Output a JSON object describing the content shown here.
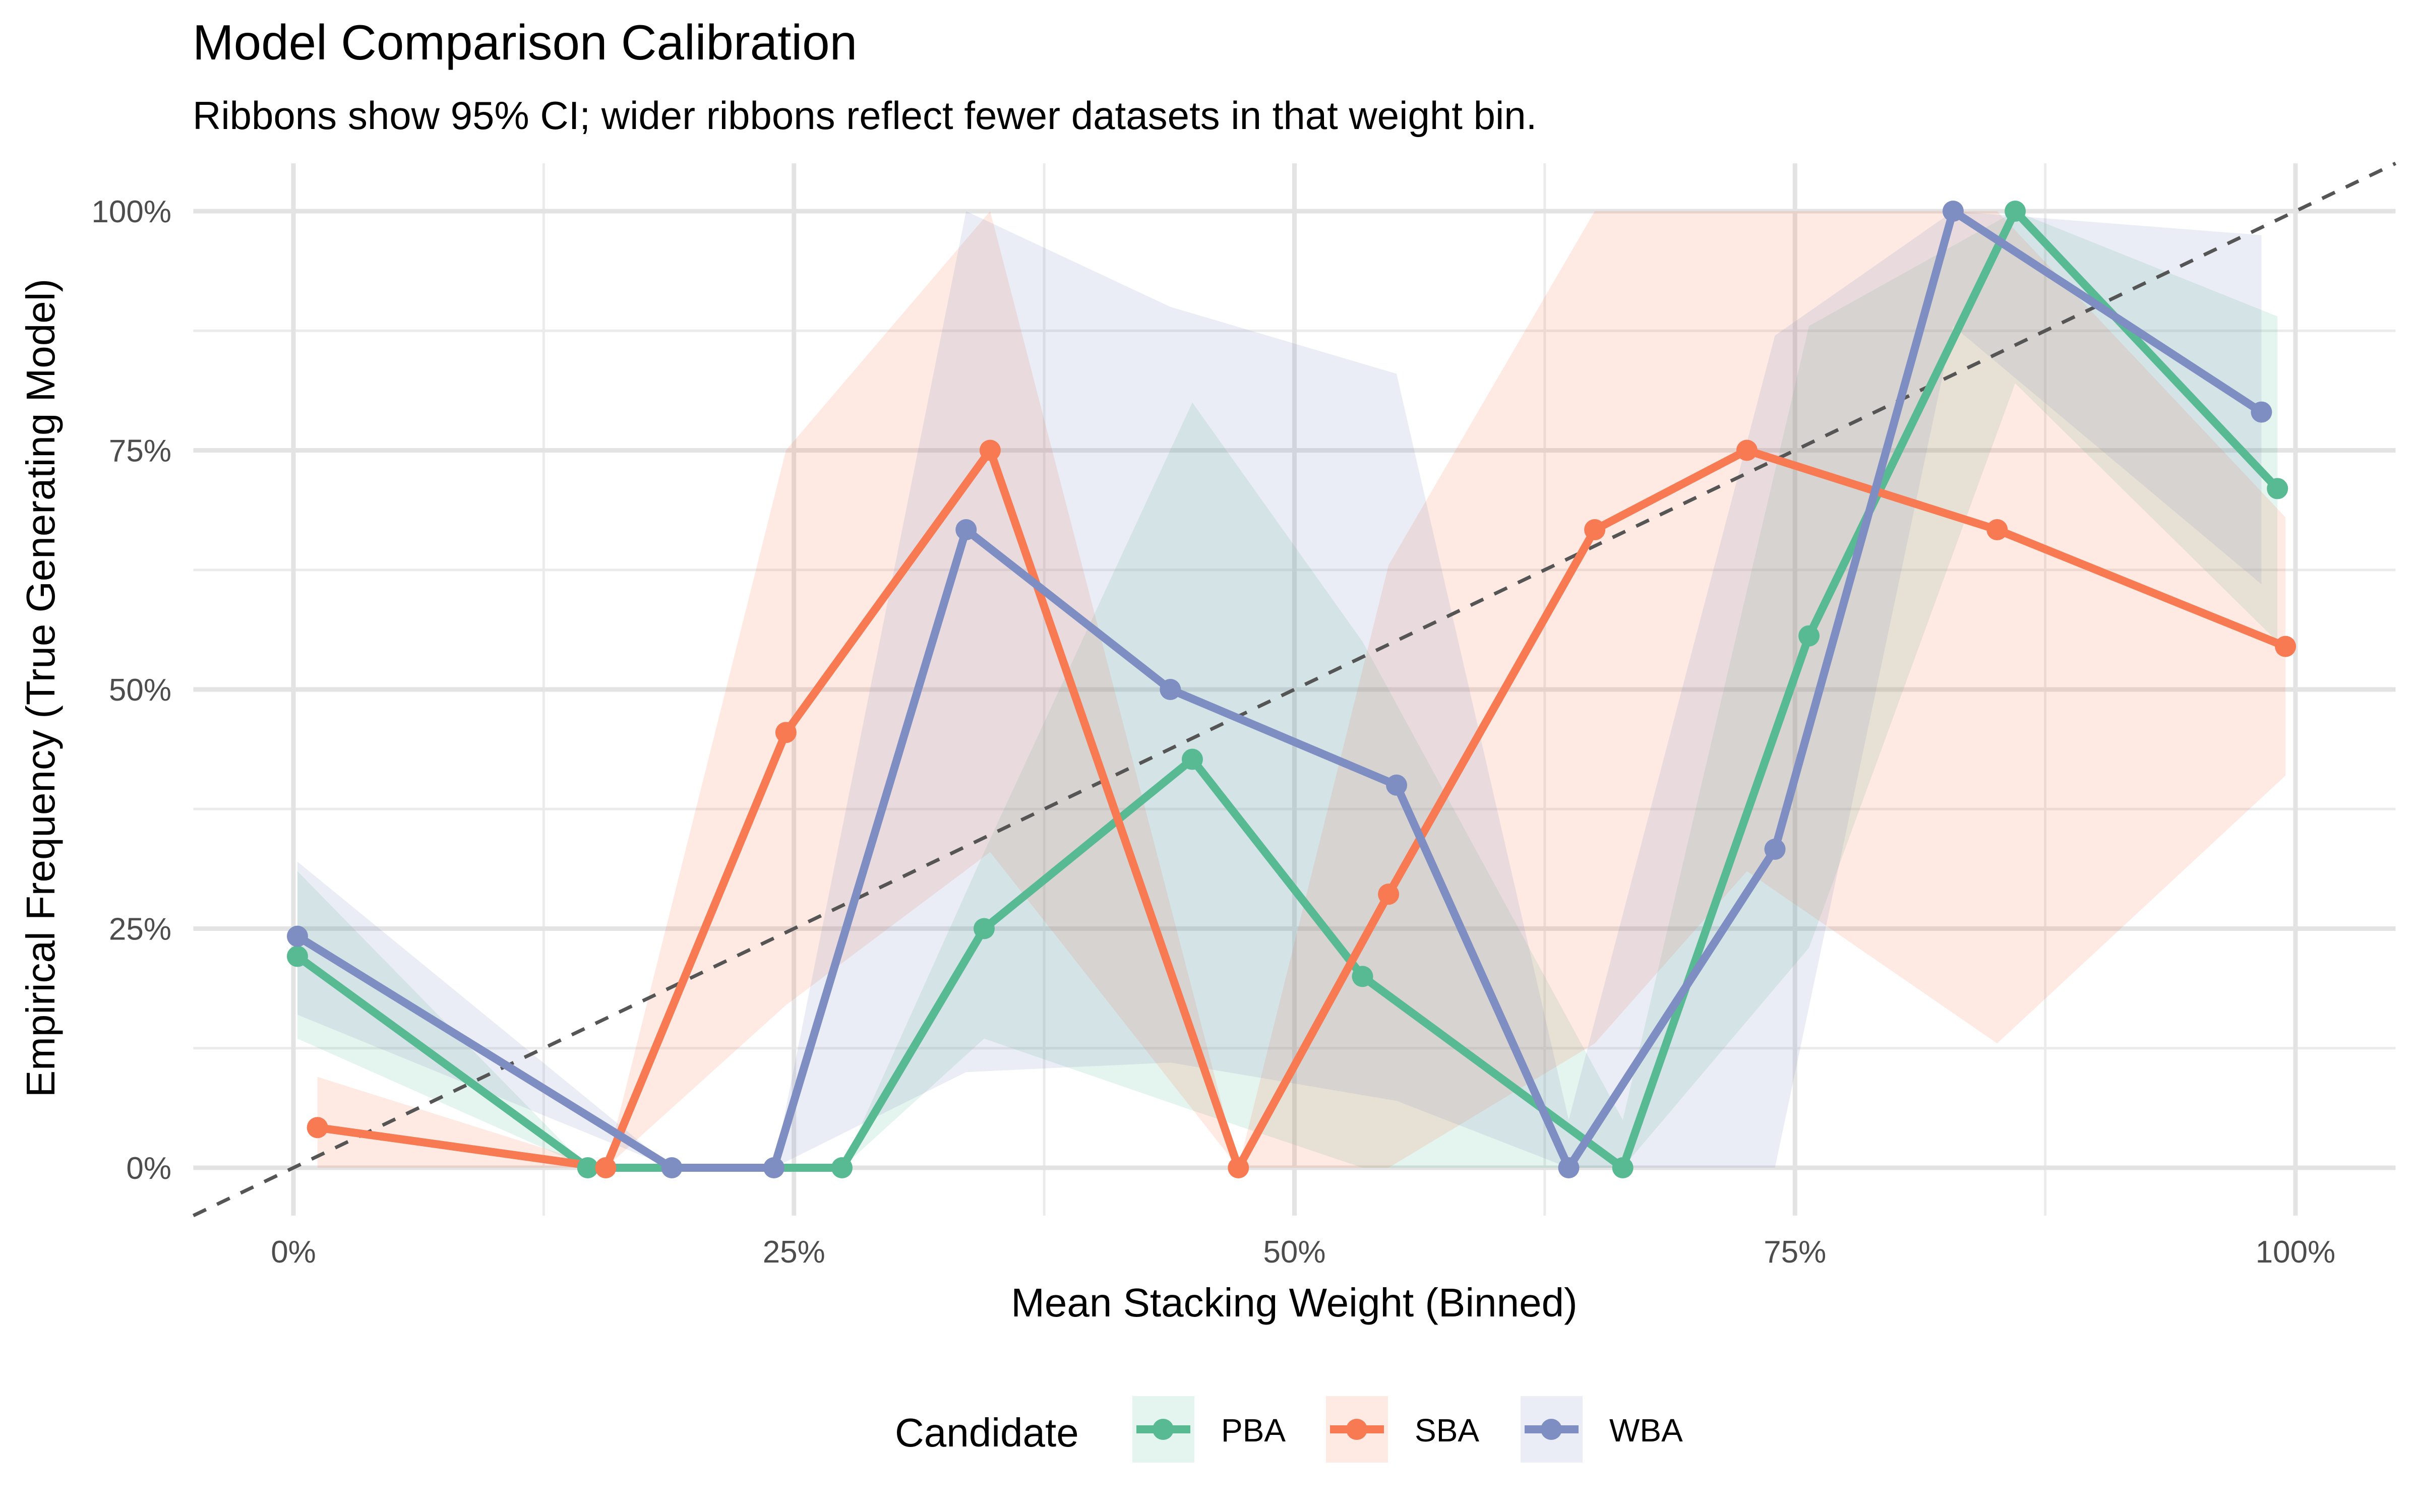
{
  "chart_data": {
    "type": "line",
    "title": "Model Comparison Calibration",
    "subtitle": "Ribbons show 95% CI; wider ribbons reflect fewer datasets in that weight bin.",
    "xlabel": "Mean Stacking Weight (Binned)",
    "ylabel": "Empirical Frequency (True Generating Model)",
    "xlim": [
      -5,
      105
    ],
    "ylim": [
      -5,
      105
    ],
    "x_ticks": [
      0,
      25,
      50,
      75,
      100
    ],
    "x_tick_labels": [
      "0%",
      "25%",
      "50%",
      "75%",
      "100%"
    ],
    "y_ticks": [
      0,
      25,
      50,
      75,
      100
    ],
    "y_tick_labels": [
      "0%",
      "25%",
      "50%",
      "75%",
      "100%"
    ],
    "grid": true,
    "reference_line": {
      "type": "diagonal",
      "style": "dashed",
      "color": "#555555"
    },
    "legend": {
      "title": "Candidate",
      "position": "bottom"
    },
    "series": [
      {
        "name": "PBA",
        "color": "#57BA93",
        "x": [
          0.2,
          14.7,
          27.4,
          34.5,
          44.9,
          53.4,
          66.4,
          75.7,
          86.0,
          99.1
        ],
        "y": [
          22.1,
          0,
          0,
          25,
          42.7,
          20,
          0,
          55.6,
          100,
          71
        ],
        "lower": [
          13.5,
          0,
          0,
          13.5,
          6,
          0,
          0,
          23,
          82,
          55
        ],
        "upper": [
          31,
          0,
          0,
          33,
          80,
          55,
          5,
          88,
          100,
          89
        ]
      },
      {
        "name": "SBA",
        "color": "#F77A52",
        "x": [
          1.2,
          15.6,
          24.6,
          34.8,
          47.2,
          54.7,
          65.0,
          72.6,
          85.1,
          99.5
        ],
        "y": [
          4.2,
          0,
          45.5,
          75,
          0,
          28.6,
          66.7,
          75,
          66.7,
          54.5
        ],
        "lower": [
          0,
          0,
          17,
          33,
          0,
          0,
          13,
          31,
          13,
          41
        ],
        "upper": [
          9.5,
          0,
          75,
          100,
          0,
          63,
          100,
          100,
          100,
          68
        ]
      },
      {
        "name": "WBA",
        "color": "#7F8EC2",
        "x": [
          0.2,
          18.9,
          24.0,
          33.6,
          43.8,
          55.1,
          63.7,
          74.0,
          82.9,
          98.3
        ],
        "y": [
          24.2,
          0,
          0,
          66.7,
          50,
          40,
          0,
          33.3,
          100,
          79
        ],
        "lower": [
          16,
          0,
          0,
          10,
          11,
          7,
          0,
          0,
          88,
          61
        ],
        "upper": [
          32,
          0,
          0,
          100,
          90,
          83,
          5,
          87,
          100,
          97.5
        ]
      }
    ]
  }
}
